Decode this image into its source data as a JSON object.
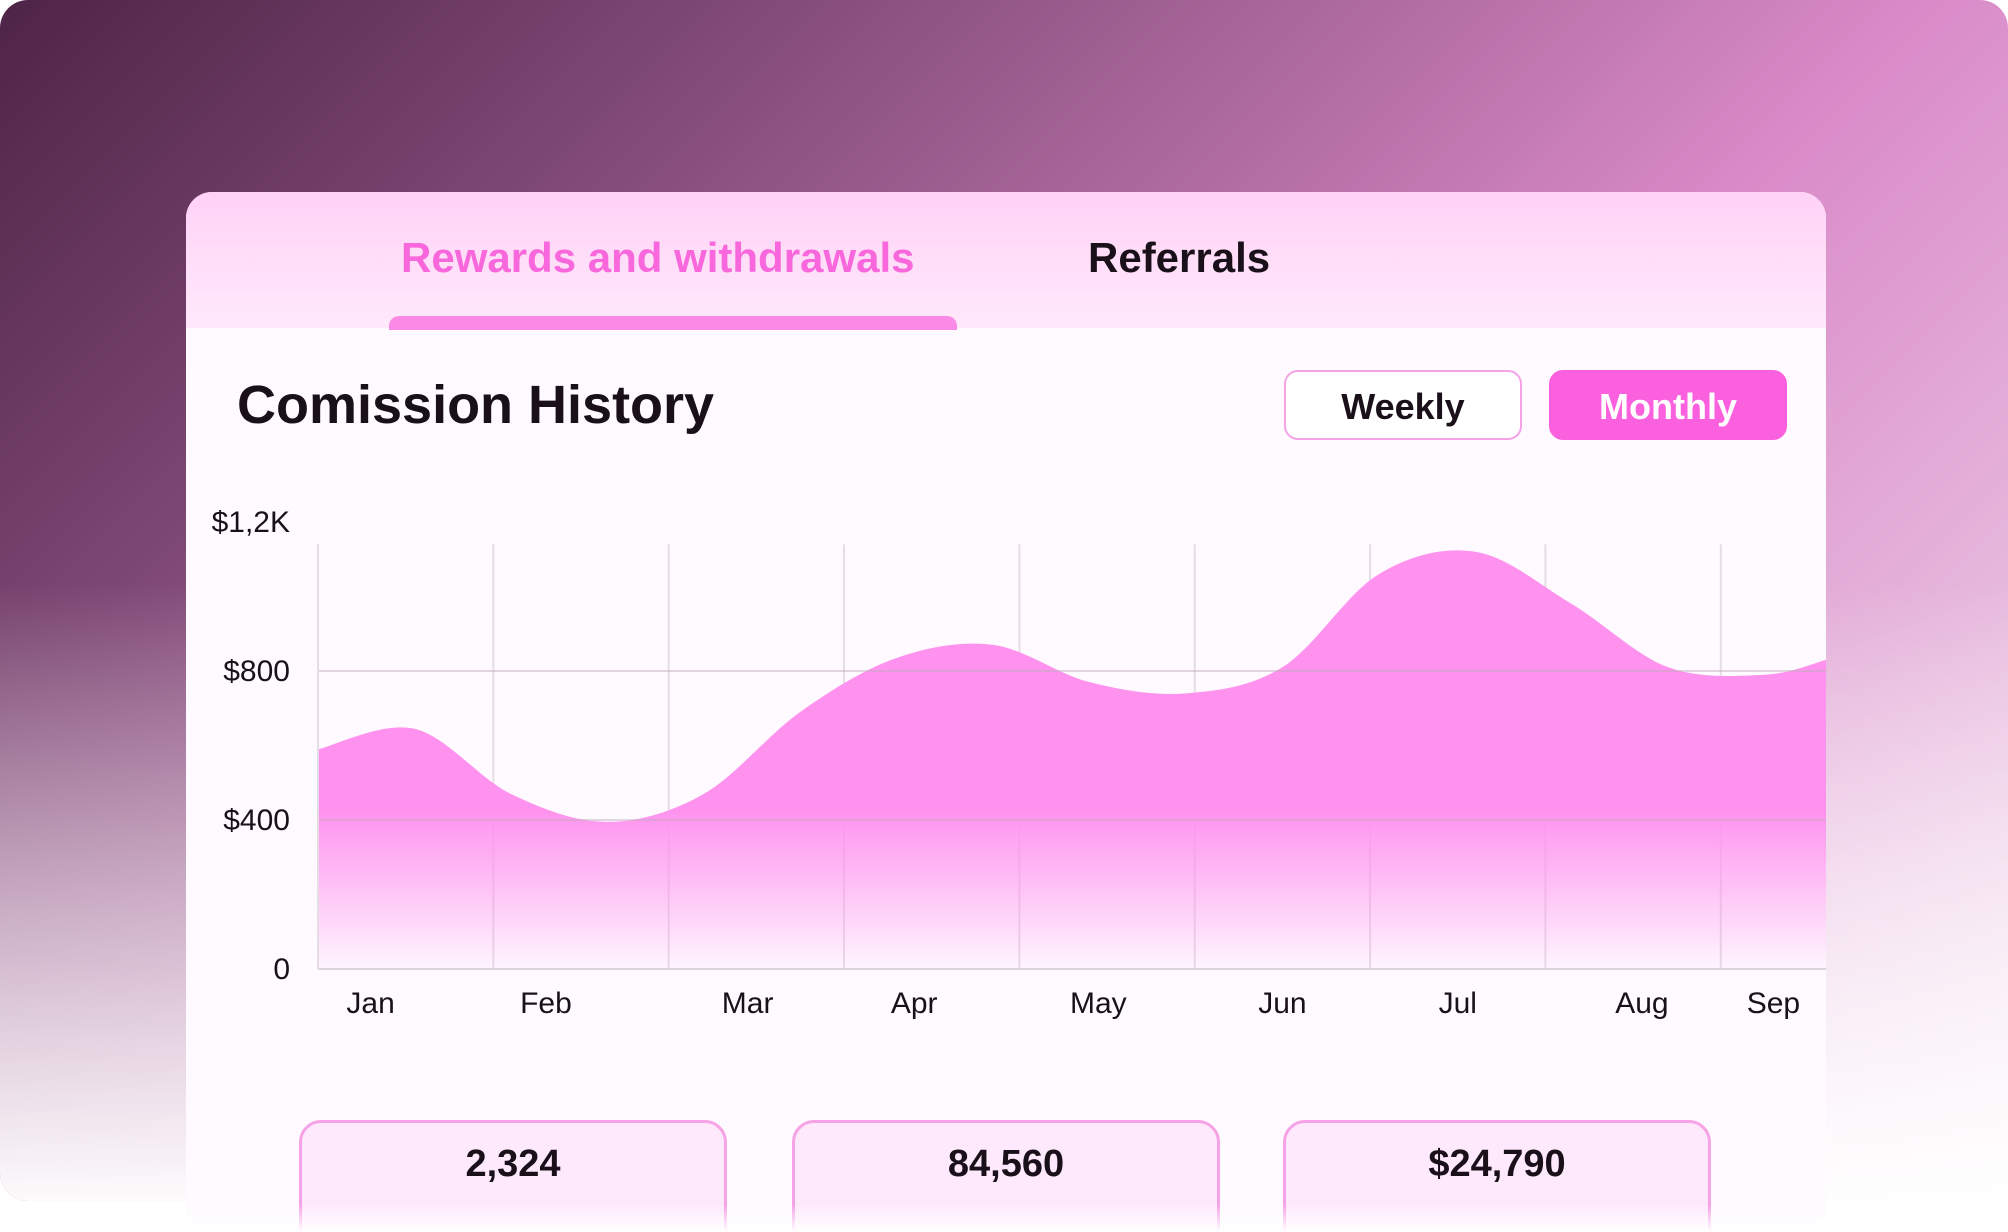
{
  "tabs": [
    {
      "label": "Rewards and withdrawals",
      "active": true
    },
    {
      "label": "Referrals",
      "active": false
    }
  ],
  "section": {
    "title": "Comission History"
  },
  "period_toggle": {
    "options": [
      "Weekly",
      "Monthly"
    ],
    "selected": "Monthly"
  },
  "colors": {
    "accent": "#fb61de",
    "accent_text": "#f867dc",
    "area_fill": "#fe92ee",
    "text_dark": "#1a1019"
  },
  "chart_data": {
    "type": "area",
    "categories": [
      "Jan",
      "Feb",
      "Mar",
      "Apr",
      "May",
      "Jun",
      "Jul",
      "Aug",
      "Sep"
    ],
    "x": [
      0,
      0.55,
      1.1,
      1.65,
      2.2,
      2.75,
      3.3,
      3.85,
      4.4,
      4.95,
      5.5,
      6.05,
      6.6,
      7.15,
      7.7,
      8.25,
      8.6
    ],
    "y": [
      590,
      645,
      470,
      395,
      470,
      690,
      835,
      870,
      770,
      740,
      810,
      1060,
      1120,
      980,
      810,
      790,
      830
    ],
    "yticks": [
      0,
      400,
      800,
      1200
    ],
    "ytick_labels": [
      "0",
      "$400",
      "$800",
      "$1,2K"
    ],
    "ylim": [
      0,
      1200
    ],
    "grid": true,
    "legend": "none"
  },
  "stats": [
    {
      "value": "2,324"
    },
    {
      "value": "84,560"
    },
    {
      "value": "$24,790"
    }
  ]
}
